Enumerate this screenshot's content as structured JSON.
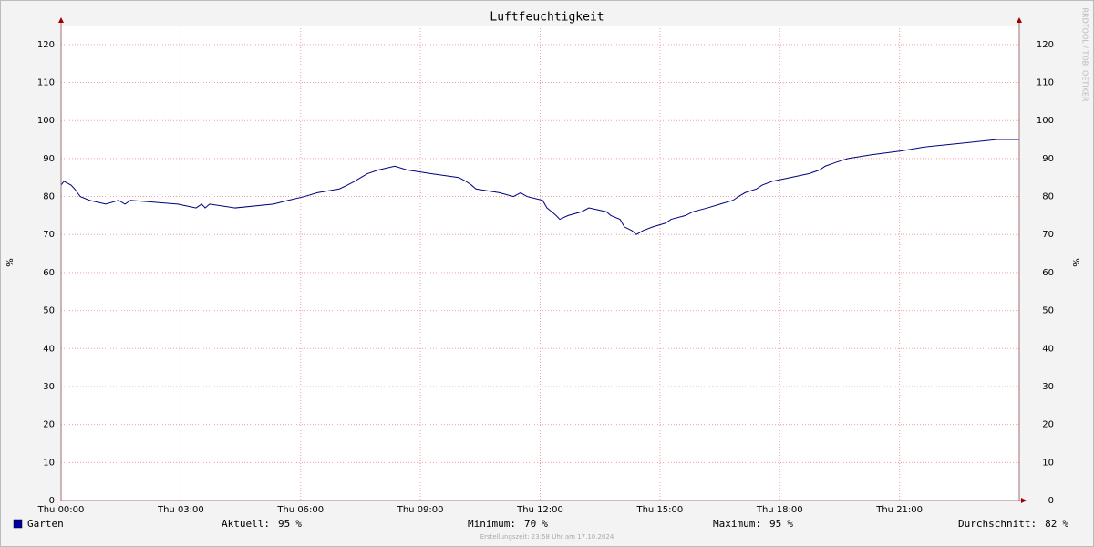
{
  "chart_data": {
    "type": "line",
    "title": "Luftfeuchtigkeit",
    "y_label": "%",
    "watermark": "RRDTOOL / TOBI OETIKER",
    "x": [
      0,
      0.07,
      0.25,
      0.34,
      0.41,
      0.48,
      0.71,
      1.12,
      1.44,
      1.6,
      1.74,
      2.92,
      3.38,
      3.52,
      3.61,
      3.72,
      4.36,
      5.32,
      5.69,
      6.1,
      6.42,
      6.97,
      7.17,
      7.35,
      7.51,
      7.67,
      7.95,
      8.36,
      8.66,
      9.27,
      9.96,
      10.14,
      10.28,
      10.39,
      10.98,
      11.33,
      11.51,
      11.67,
      12.06,
      12.17,
      12.29,
      12.4,
      12.49,
      12.7,
      13.04,
      13.22,
      13.66,
      13.77,
      14.0,
      14.11,
      14.3,
      14.41,
      14.57,
      14.82,
      15.14,
      15.28,
      15.64,
      15.83,
      16.19,
      16.51,
      16.83,
      16.97,
      17.13,
      17.42,
      17.56,
      17.81,
      18.27,
      18.73,
      19.0,
      19.14,
      19.41,
      19.71,
      20.3,
      21.05,
      21.6,
      22.52,
      23.45,
      24.0
    ],
    "series": [
      {
        "name": "Garten",
        "color": "#00007f",
        "legend_color": "#0000a0",
        "values": [
          83,
          84,
          83,
          82,
          81,
          80,
          79,
          78,
          79,
          78,
          79,
          78,
          77,
          78,
          77,
          78,
          77,
          78,
          79,
          80,
          81,
          82,
          83,
          84,
          85,
          86,
          87,
          88,
          87,
          86,
          85,
          84,
          83,
          82,
          81,
          80,
          81,
          80,
          79,
          77,
          76,
          75,
          74,
          75,
          76,
          77,
          76,
          75,
          74,
          72,
          71,
          70,
          71,
          72,
          73,
          74,
          75,
          76,
          77,
          78,
          79,
          80,
          81,
          82,
          83,
          84,
          85,
          86,
          87,
          88,
          89,
          90,
          91,
          92,
          93,
          94,
          95,
          95
        ]
      }
    ],
    "xlim": [
      0,
      24
    ],
    "xticks": [
      {
        "value": 0,
        "label": "Thu 00:00"
      },
      {
        "value": 3,
        "label": "Thu 03:00"
      },
      {
        "value": 6,
        "label": "Thu 06:00"
      },
      {
        "value": 9,
        "label": "Thu 09:00"
      },
      {
        "value": 12,
        "label": "Thu 12:00"
      },
      {
        "value": 15,
        "label": "Thu 15:00"
      },
      {
        "value": 18,
        "label": "Thu 18:00"
      },
      {
        "value": 21,
        "label": "Thu 21:00"
      }
    ],
    "ylim": [
      0,
      125
    ],
    "yticks": [
      0,
      10,
      20,
      30,
      40,
      50,
      60,
      70,
      80,
      90,
      100,
      110,
      120
    ],
    "grid": true,
    "stats": [
      {
        "label": "Aktuell:",
        "value": 95,
        "unit": "%"
      },
      {
        "label": "Minimum:",
        "value": 70,
        "unit": "%"
      },
      {
        "label": "Maximum:",
        "value": 95,
        "unit": "%"
      },
      {
        "label": "Durchschnitt:",
        "value": 82,
        "unit": "%"
      }
    ],
    "footer": "Erstellungszeit: 23:58 Uhr am 17.10.2024"
  }
}
